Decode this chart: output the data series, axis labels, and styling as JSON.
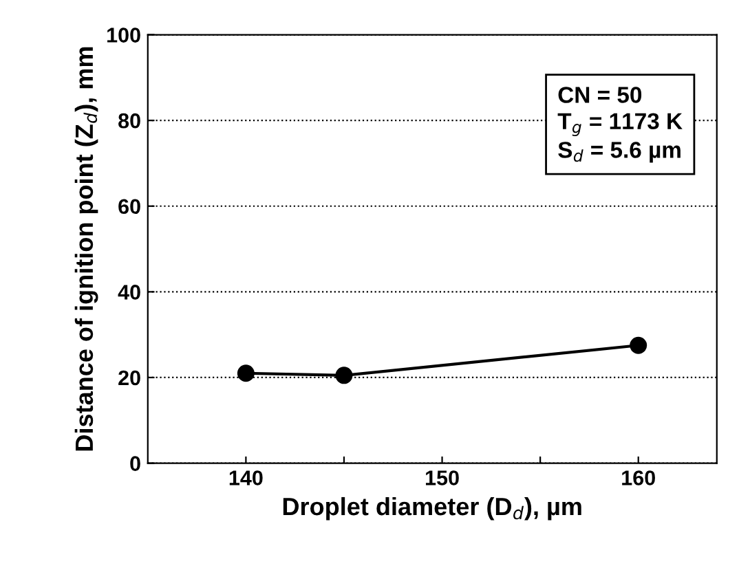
{
  "chart_data": {
    "type": "line",
    "xlabel": "Droplet diameter (D$_{d}$), µm",
    "ylabel": "Distance of ignition point (Z$_{d}$), mm",
    "annotations": [
      "CN = 50\nT$_{g}$ = 1173 K\nS$_{d}$ = 5.6 µm"
    ],
    "x": [
      140,
      145,
      160
    ],
    "series": [
      {
        "color": "#000000",
        "values": [
          21,
          20.5,
          27.5
        ]
      }
    ],
    "xlim": [
      135,
      164
    ],
    "xticks": [
      140,
      {
        "value": 145,
        "label": null
      },
      150,
      {
        "value": 155,
        "label": null
      },
      160
    ],
    "ylim": [
      0,
      100
    ],
    "yticks": [
      0,
      20,
      40,
      60,
      80,
      100
    ],
    "grid": "y",
    "marker": "circle",
    "line_style": "solid",
    "legend": false
  }
}
